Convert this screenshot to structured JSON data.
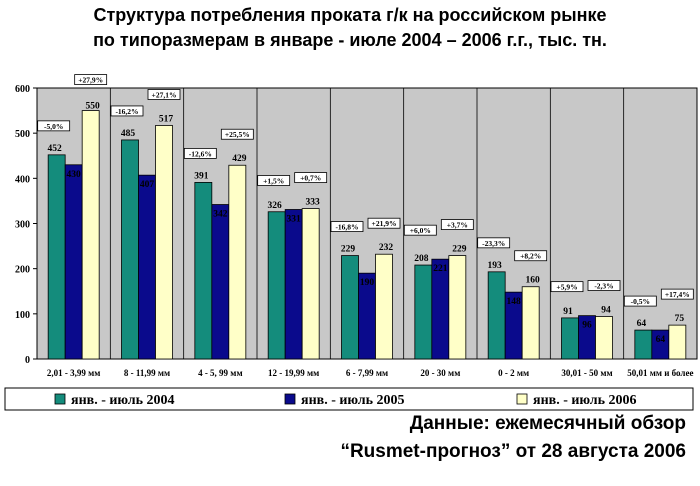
{
  "title_line1": "Структура потребления проката г/к на российском рынке",
  "title_line2": "по типоразмерам в январе - июле 2004 – 2006 г.г., тыс. тн.",
  "source_line1": "Данные: ежемесячный обзор",
  "source_line2": "“Rusmet-прогноз” от 28 августа 2006",
  "colors": {
    "s2004": "#148c7c",
    "s2005": "#0a0a8c",
    "s2006": "#ffffc8",
    "plot_bg": "#c8c8c8"
  },
  "chart_data": {
    "type": "bar",
    "title": "Структура потребления проката г/к на российском рынке по типоразмерам в январе - июле 2004 – 2006 г.г., тыс. тн.",
    "categories": [
      "2,01 - 3,99 мм",
      "8 - 11,99 мм",
      "4 - 5, 99 мм",
      "12 - 19,99 мм",
      "6 - 7,99 мм",
      "20 - 30 мм",
      "0 - 2 мм",
      "30,01 - 50 мм",
      "50,01 мм и более"
    ],
    "series": [
      {
        "name": "янв. - июль 2004",
        "values": [
          452,
          485,
          391,
          326,
          229,
          208,
          193,
          91,
          64
        ]
      },
      {
        "name": "янв. - июль 2005",
        "values": [
          430,
          407,
          342,
          331,
          190,
          221,
          148,
          96,
          64
        ]
      },
      {
        "name": "янв. - июль 2006",
        "values": [
          550,
          517,
          429,
          333,
          232,
          229,
          160,
          94,
          75
        ]
      }
    ],
    "change_labels": [
      [
        "-5,0%",
        "+27,9%"
      ],
      [
        "-16,2%",
        "+27,1%"
      ],
      [
        "-12,6%",
        "+25,5%"
      ],
      [
        "+1,5%",
        "+0,7%"
      ],
      [
        "-16,8%",
        "+21,9%"
      ],
      [
        "+6,0%",
        "+3,7%"
      ],
      [
        "-23,3%",
        "+8,2%"
      ],
      [
        "+5,9%",
        "-2,3%"
      ],
      [
        "-0,5%",
        "+17,4%"
      ]
    ],
    "ylim": [
      0,
      600
    ],
    "yticks": [
      0,
      100,
      200,
      300,
      400,
      500,
      600
    ],
    "grid": "vertical category separators",
    "legend": "bottom"
  }
}
